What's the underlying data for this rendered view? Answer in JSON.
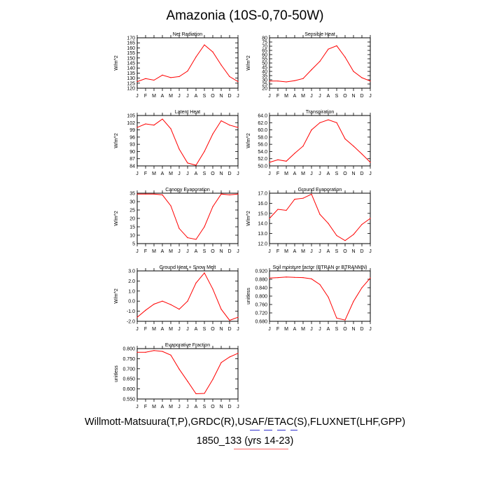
{
  "figure": {
    "title": "Amazonia (10S-0,70-50W)",
    "caption_sources": "Willmott-Matsuura(T,P),GRDC(R),USAF/ETAC(S),FLUXNET(LHF,GPP)",
    "caption_case": "1850_133 (yrs 14-23)",
    "line_color": "#ff0000",
    "underline_blue": "#3333cc",
    "underline_red": "#ff6666"
  },
  "chart_data": [
    {
      "type": "line",
      "title": "Net Radiation",
      "ylabel": "W/m^2",
      "categories": [
        "J",
        "F",
        "M",
        "A",
        "M",
        "J",
        "J",
        "A",
        "S",
        "O",
        "N",
        "D",
        "J"
      ],
      "ylim": [
        120,
        170
      ],
      "yticks": [
        "120",
        "125",
        "130",
        "135",
        "140",
        "145",
        "150",
        "155",
        "160",
        "165",
        "170"
      ],
      "values": [
        126.5,
        129.5,
        128,
        133,
        130.5,
        131.5,
        137,
        151,
        163,
        156,
        143,
        131.5,
        126.5
      ]
    },
    {
      "type": "line",
      "title": "Sensible Heat",
      "ylabel": "W/m^2",
      "categories": [
        "J",
        "F",
        "M",
        "A",
        "M",
        "J",
        "J",
        "A",
        "S",
        "O",
        "N",
        "D",
        "J"
      ],
      "ylim": [
        20,
        80
      ],
      "yticks": [
        "20",
        "25",
        "30",
        "35",
        "40",
        "45",
        "50",
        "55",
        "60",
        "65",
        "70",
        "75",
        "80"
      ],
      "values": [
        28.5,
        28.5,
        27.5,
        29,
        31.5,
        42,
        52,
        66.5,
        70.5,
        57,
        40,
        32.5,
        28.5
      ]
    },
    {
      "type": "line",
      "title": "Latent Heat",
      "ylabel": "W/m^2",
      "categories": [
        "J",
        "F",
        "M",
        "A",
        "M",
        "J",
        "J",
        "A",
        "S",
        "O",
        "N",
        "D",
        "J"
      ],
      "ylim": [
        84,
        105
      ],
      "yticks": [
        "84",
        "87",
        "90",
        "93",
        "96",
        "99",
        "102",
        "105"
      ],
      "values": [
        100,
        101.5,
        101,
        103.5,
        99.5,
        91,
        85.2,
        84.3,
        90,
        97.3,
        102.8,
        101,
        100
      ]
    },
    {
      "type": "line",
      "title": "Transpiration",
      "ylabel": "W/m^2",
      "categories": [
        "J",
        "F",
        "M",
        "A",
        "M",
        "J",
        "J",
        "A",
        "S",
        "O",
        "N",
        "D",
        "J"
      ],
      "ylim": [
        50,
        64
      ],
      "yticks": [
        "50.0",
        "52.0",
        "54.0",
        "56.0",
        "58.0",
        "60.0",
        "62.0",
        "64.0"
      ],
      "values": [
        51,
        51.7,
        51.3,
        53.5,
        55.5,
        60,
        62,
        62.8,
        62,
        57.5,
        55.5,
        53.3,
        51
      ]
    },
    {
      "type": "line",
      "title": "Canopy Evaporation",
      "ylabel": "W/m^2",
      "categories": [
        "J",
        "F",
        "M",
        "A",
        "M",
        "J",
        "J",
        "A",
        "S",
        "O",
        "N",
        "D",
        "J"
      ],
      "ylim": [
        5,
        35
      ],
      "yticks": [
        "5",
        "10",
        "15",
        "20",
        "25",
        "30",
        "35"
      ],
      "values": [
        34.5,
        34.5,
        34.5,
        34,
        27.5,
        14,
        8.5,
        7.5,
        15,
        27,
        34.5,
        34,
        34.5
      ]
    },
    {
      "type": "line",
      "title": "Ground Evaporation",
      "ylabel": "W/m^2",
      "categories": [
        "J",
        "F",
        "M",
        "A",
        "M",
        "J",
        "J",
        "A",
        "S",
        "O",
        "N",
        "D",
        "J"
      ],
      "ylim": [
        12,
        17
      ],
      "yticks": [
        "12.0",
        "13.0",
        "14.0",
        "15.0",
        "16.0",
        "17.0"
      ],
      "values": [
        14.5,
        15.4,
        15.3,
        16.4,
        16.5,
        16.9,
        14.9,
        14,
        12.8,
        12.3,
        12.9,
        13.9,
        14.5
      ]
    },
    {
      "type": "line",
      "title": "Ground Heat + Snow Melt",
      "ylabel": "W/m^2",
      "categories": [
        "J",
        "F",
        "M",
        "A",
        "M",
        "J",
        "J",
        "A",
        "S",
        "O",
        "N",
        "D",
        "J"
      ],
      "ylim": [
        -2,
        3
      ],
      "yticks": [
        "-2.0",
        "-1.0",
        "0.0",
        "1.0",
        "2.0",
        "3.0"
      ],
      "values": [
        -1.6,
        -0.9,
        -0.3,
        0,
        -0.35,
        -0.8,
        0,
        1.8,
        2.8,
        1.2,
        -0.8,
        -1.9,
        -1.6
      ]
    },
    {
      "type": "line",
      "title": "Soil moisture factor (BTRAN or BTRANMN)",
      "ylabel": "unitless",
      "categories": [
        "J",
        "F",
        "M",
        "A",
        "M",
        "J",
        "J",
        "A",
        "S",
        "O",
        "N",
        "D",
        "J"
      ],
      "ylim": [
        0.68,
        0.92
      ],
      "yticks": [
        "0.680",
        "0.720",
        "0.760",
        "0.800",
        "0.840",
        "0.880",
        "0.920"
      ],
      "values": [
        0.886,
        0.888,
        0.891,
        0.889,
        0.888,
        0.882,
        0.855,
        0.795,
        0.695,
        0.686,
        0.775,
        0.84,
        0.886
      ]
    },
    {
      "type": "line",
      "title": "Evaporative Fraction",
      "ylabel": "unitless",
      "categories": [
        "J",
        "F",
        "M",
        "A",
        "M",
        "J",
        "J",
        "A",
        "S",
        "O",
        "N",
        "D",
        "J"
      ],
      "ylim": [
        0.53,
        0.8
      ],
      "yticks": [
        "0.550",
        "0.600",
        "0.650",
        "0.700",
        "0.750",
        "0.800"
      ],
      "values": [
        0.78,
        0.78,
        0.79,
        0.785,
        0.765,
        0.69,
        0.625,
        0.558,
        0.56,
        0.635,
        0.725,
        0.755,
        0.775
      ]
    }
  ]
}
